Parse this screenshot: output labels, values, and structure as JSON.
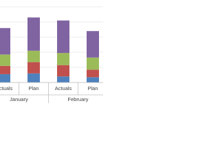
{
  "chart_data": {
    "type": "stacked-bar",
    "categories": [
      "Actuals",
      "Plan",
      "Actuals",
      "Plan"
    ],
    "groups": [
      "January",
      "February"
    ],
    "series": [
      {
        "color": "#4f81bd",
        "values": [
          11,
          12,
          8,
          7
        ]
      },
      {
        "color": "#c0504d",
        "values": [
          11,
          15,
          15,
          10
        ]
      },
      {
        "color": "#9bbb59",
        "values": [
          15,
          15,
          16,
          16
        ]
      },
      {
        "color": "#8064a2",
        "values": [
          35,
          44,
          43,
          35
        ]
      }
    ],
    "ylim": [
      0,
      100
    ],
    "yticks": [
      0,
      20,
      40,
      60,
      80,
      100
    ],
    "grid": true
  }
}
